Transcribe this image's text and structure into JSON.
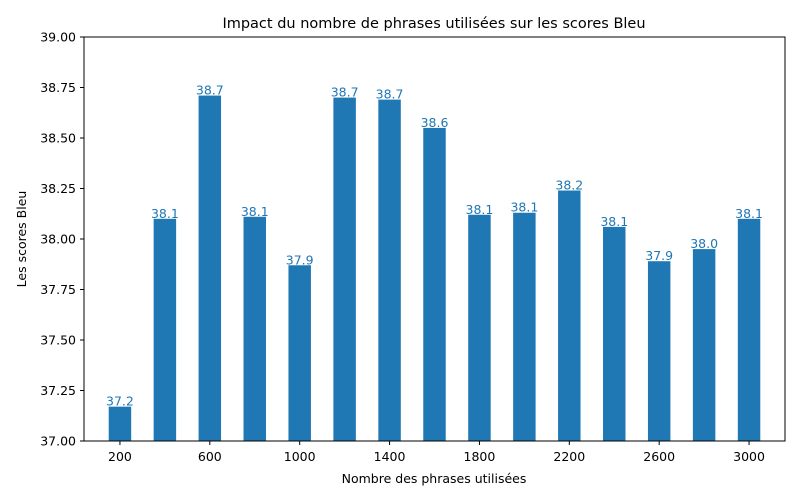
{
  "chart_data": {
    "type": "bar",
    "title": "Impact du nombre de phrases utilisées sur les scores Bleu",
    "xlabel": "Nombre des phrases utilisées",
    "ylabel": "Les scores Bleu",
    "categories": [
      200,
      400,
      600,
      800,
      1000,
      1200,
      1400,
      1600,
      1800,
      2000,
      2200,
      2400,
      2600,
      2800,
      3000
    ],
    "values": [
      37.17,
      38.1,
      38.71,
      38.11,
      37.87,
      38.7,
      38.69,
      38.55,
      38.12,
      38.13,
      38.24,
      38.06,
      37.89,
      37.95,
      38.1
    ],
    "data_labels": [
      "37.2",
      "38.1",
      "38.7",
      "38.1",
      "37.9",
      "38.7",
      "38.7",
      "38.6",
      "38.1",
      "38.1",
      "38.2",
      "38.1",
      "37.9",
      "38.0",
      "38.1"
    ],
    "x_ticks": [
      "200",
      "600",
      "1000",
      "1400",
      "1800",
      "2200",
      "2600",
      "3000"
    ],
    "y_ticks": [
      "37.00",
      "37.25",
      "37.50",
      "37.75",
      "38.00",
      "38.25",
      "38.50",
      "38.75",
      "39.00"
    ],
    "ylim": [
      37.0,
      39.0
    ],
    "grid": false,
    "bar_color": "#1f77b4",
    "label_color": "#1f77b4"
  }
}
